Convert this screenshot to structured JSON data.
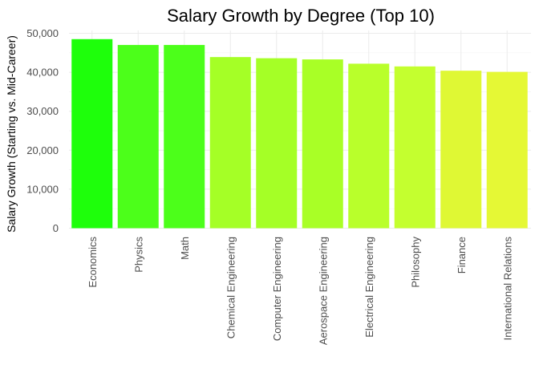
{
  "chart_data": {
    "type": "bar",
    "title": "Salary Growth by Degree (Top 10)",
    "xlabel": "",
    "ylabel": "Salary Growth (Starting vs. Mid-Career)",
    "categories": [
      "Economics",
      "Physics",
      "Math",
      "Chemical Engineering",
      "Computer Engineering",
      "Aerospace Engineering",
      "Electrical Engineering",
      "Philosophy",
      "Finance",
      "International Relations"
    ],
    "values": [
      48500,
      47000,
      47000,
      43900,
      43600,
      43300,
      42200,
      41500,
      40400,
      40100
    ],
    "colors": [
      "#1eff0b",
      "#4cff1a",
      "#4cff1a",
      "#a5ff26",
      "#a5ff26",
      "#a9ff26",
      "#b9ff2b",
      "#c4ff2f",
      "#dff834",
      "#e5f835"
    ],
    "ylim": [
      0,
      50000
    ],
    "yticks": [
      "0",
      "10,000",
      "20,000",
      "30,000",
      "40,000",
      "50,000"
    ],
    "grid": true,
    "legend": "none"
  }
}
